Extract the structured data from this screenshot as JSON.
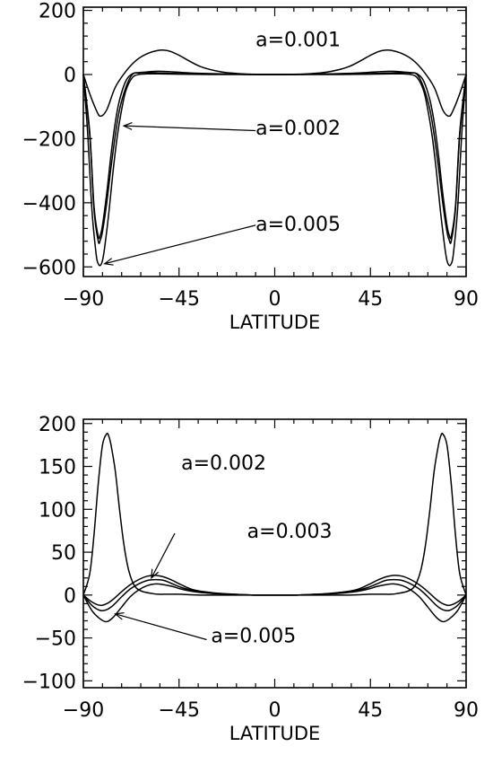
{
  "chart_data": [
    {
      "type": "line",
      "xlabel": "LATITUDE",
      "ylabel": "",
      "xlim": [
        -90,
        90
      ],
      "ylim": [
        -630,
        210
      ],
      "x_ticks": [
        -90,
        -45,
        0,
        45,
        90
      ],
      "y_ticks": [
        200,
        0,
        -200,
        -400,
        -600
      ],
      "x_tick_labels": [
        "−90",
        "−45",
        "0",
        "45",
        "90"
      ],
      "y_tick_labels": [
        "200",
        "0",
        "−200",
        "−400",
        "−600"
      ],
      "series": [
        {
          "x": [
            -90,
            -87,
            -84,
            -82,
            -79,
            -75,
            -70,
            -65,
            -60,
            -55,
            -52,
            -49,
            -45,
            -35,
            -25,
            -15,
            -5,
            0,
            5,
            15,
            25,
            35,
            45,
            49,
            52,
            55,
            60,
            65,
            70,
            75,
            79,
            82,
            84,
            87,
            90
          ],
          "y": [
            0,
            -60,
            -110,
            -130,
            -110,
            -40,
            10,
            45,
            65,
            75,
            76,
            72,
            60,
            25,
            8,
            2,
            0,
            0,
            0,
            2,
            8,
            25,
            60,
            72,
            76,
            75,
            65,
            45,
            10,
            -40,
            -110,
            -130,
            -110,
            -60,
            0
          ]
        },
        {
          "x": [
            -90,
            -87,
            -85,
            -83,
            -82,
            -81,
            -79,
            -77,
            -75,
            -73,
            -70,
            -67,
            -64,
            -60,
            -55,
            -50,
            -40,
            -25,
            -10,
            0,
            10,
            25,
            40,
            50,
            55,
            60,
            64,
            67,
            70,
            73,
            75,
            77,
            79,
            81,
            82,
            83,
            85,
            87,
            90
          ],
          "y": [
            0,
            -190,
            -420,
            -520,
            -515,
            -490,
            -400,
            -290,
            -190,
            -110,
            -40,
            0,
            5,
            6,
            5,
            4,
            2,
            1,
            0,
            0,
            0,
            1,
            2,
            4,
            5,
            6,
            5,
            0,
            -40,
            -110,
            -190,
            -290,
            -400,
            -490,
            -515,
            -520,
            -420,
            -190,
            0
          ]
        },
        {
          "x": [
            -90,
            -87,
            -85,
            -83,
            -82,
            -81,
            -79,
            -77,
            -75,
            -73,
            -70,
            -67,
            -64,
            -60,
            -55,
            -50,
            -40,
            -25,
            -10,
            0,
            10,
            25,
            40,
            50,
            55,
            60,
            64,
            67,
            70,
            73,
            75,
            77,
            79,
            81,
            82,
            83,
            85,
            87,
            90
          ],
          "y": [
            0,
            -180,
            -410,
            -505,
            -500,
            -470,
            -370,
            -250,
            -150,
            -80,
            -20,
            2,
            6,
            8,
            10,
            9,
            5,
            2,
            0,
            0,
            0,
            2,
            5,
            9,
            10,
            8,
            6,
            2,
            -20,
            -80,
            -150,
            -250,
            -370,
            -470,
            -500,
            -505,
            -410,
            -180,
            0
          ]
        },
        {
          "x": [
            -90,
            -88,
            -86,
            -84,
            -83,
            -82,
            -81,
            -80,
            -78,
            -76,
            -74,
            -72,
            -70,
            -67,
            -64,
            -60,
            -55,
            -45,
            -30,
            -15,
            0,
            15,
            30,
            45,
            55,
            60,
            64,
            67,
            70,
            72,
            74,
            76,
            78,
            80,
            81,
            82,
            83,
            84,
            86,
            88,
            90
          ],
          "y": [
            0,
            -180,
            -420,
            -560,
            -590,
            -595,
            -580,
            -540,
            -430,
            -300,
            -190,
            -110,
            -50,
            -10,
            0,
            2,
            2,
            1,
            0,
            0,
            0,
            0,
            0,
            1,
            2,
            2,
            0,
            -10,
            -50,
            -110,
            -190,
            -300,
            -430,
            -540,
            -580,
            -595,
            -590,
            -560,
            -420,
            -180,
            0
          ]
        }
      ],
      "annotations": [
        {
          "text": "a=0.001",
          "x": -9,
          "y": 110
        },
        {
          "text": "a=0.002",
          "x": -9,
          "y": -165
        },
        {
          "text": "a=0.005",
          "x": -9,
          "y": -465
        }
      ]
    },
    {
      "type": "line",
      "xlabel": "LATITUDE",
      "ylabel": "",
      "xlim": [
        -90,
        90
      ],
      "ylim": [
        -108,
        205
      ],
      "x_ticks": [
        -90,
        -45,
        0,
        45,
        90
      ],
      "y_ticks": [
        200,
        150,
        100,
        50,
        0,
        -50,
        -100
      ],
      "x_tick_labels": [
        "−90",
        "−45",
        "0",
        "45",
        "90"
      ],
      "y_tick_labels": [
        "200",
        "150",
        "100",
        "50",
        "0",
        "−50",
        "−100"
      ],
      "series": [
        {
          "x": [
            -90,
            -87,
            -85,
            -83,
            -81,
            -79,
            -78,
            -77,
            -75,
            -73,
            -71,
            -69,
            -67,
            -65,
            -62,
            -58,
            -55,
            -50,
            -45,
            -35,
            -20,
            0,
            20,
            35,
            45,
            50,
            55,
            58,
            62,
            65,
            67,
            69,
            71,
            73,
            75,
            77,
            78,
            79,
            81,
            83,
            85,
            87,
            90
          ],
          "y": [
            0,
            25,
            70,
            130,
            175,
            188,
            185,
            175,
            145,
            100,
            60,
            32,
            16,
            8,
            4,
            2,
            1,
            1,
            1,
            0,
            0,
            0,
            0,
            0,
            1,
            1,
            1,
            2,
            4,
            8,
            16,
            32,
            60,
            100,
            145,
            175,
            185,
            188,
            175,
            130,
            70,
            25,
            0
          ]
        },
        {
          "x": [
            -90,
            -86,
            -82,
            -79,
            -76,
            -72,
            -68,
            -64,
            -60,
            -56,
            -52,
            -48,
            -44,
            -38,
            -30,
            -20,
            -10,
            0,
            10,
            20,
            30,
            38,
            44,
            48,
            52,
            56,
            60,
            64,
            68,
            72,
            76,
            79,
            82,
            86,
            90
          ],
          "y": [
            0,
            -8,
            -12,
            -10,
            -5,
            4,
            12,
            18,
            22,
            23,
            21,
            17,
            12,
            6,
            3,
            1,
            0,
            0,
            0,
            1,
            3,
            6,
            12,
            17,
            21,
            23,
            22,
            18,
            12,
            4,
            -5,
            -10,
            -12,
            -8,
            0
          ]
        },
        {
          "x": [
            -90,
            -86,
            -82,
            -79,
            -76,
            -72,
            -68,
            -64,
            -60,
            -56,
            -52,
            -48,
            -44,
            -38,
            -30,
            -20,
            -10,
            0,
            10,
            20,
            30,
            38,
            44,
            48,
            52,
            56,
            60,
            64,
            68,
            72,
            76,
            79,
            82,
            86,
            90
          ],
          "y": [
            0,
            -12,
            -18,
            -17,
            -12,
            -2,
            7,
            13,
            17,
            18,
            17,
            13,
            9,
            5,
            2,
            1,
            0,
            0,
            0,
            1,
            2,
            5,
            9,
            13,
            17,
            18,
            17,
            13,
            7,
            -2,
            -12,
            -17,
            -18,
            -12,
            0
          ]
        },
        {
          "x": [
            -90,
            -86,
            -82,
            -79,
            -76,
            -72,
            -68,
            -64,
            -60,
            -56,
            -52,
            -48,
            -44,
            -38,
            -30,
            -20,
            -10,
            0,
            10,
            20,
            30,
            38,
            44,
            48,
            52,
            56,
            60,
            64,
            68,
            72,
            76,
            79,
            82,
            86,
            90
          ],
          "y": [
            0,
            -18,
            -28,
            -31,
            -26,
            -14,
            -2,
            6,
            11,
            13,
            12,
            10,
            7,
            4,
            2,
            1,
            0,
            0,
            0,
            1,
            2,
            4,
            7,
            10,
            12,
            13,
            11,
            6,
            -2,
            -14,
            -26,
            -31,
            -28,
            -18,
            0
          ]
        }
      ],
      "annotations": [
        {
          "text": "a=0.002",
          "x": -44,
          "y": 155
        },
        {
          "text": "a=0.003",
          "x": -13,
          "y": 75
        },
        {
          "text": "a=0.005",
          "x": -30,
          "y": -47
        }
      ]
    }
  ]
}
